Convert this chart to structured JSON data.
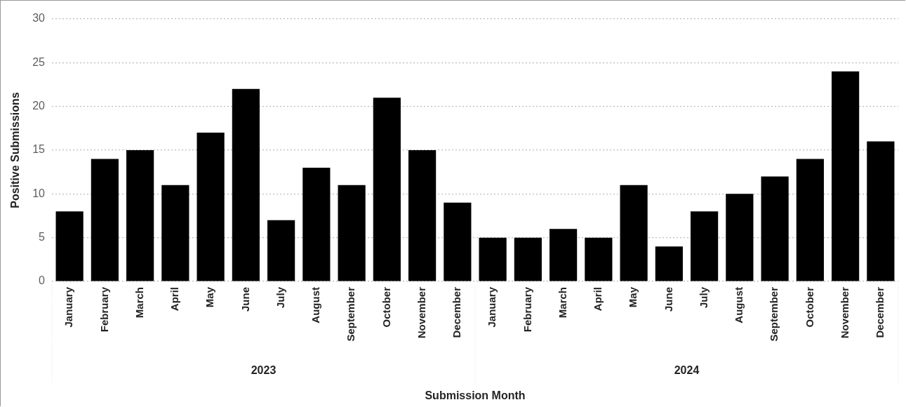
{
  "chart_data": {
    "type": "bar",
    "xlabel": "Submission Month",
    "ylabel": "Positive Submissions",
    "categories": [
      "January",
      "February",
      "March",
      "April",
      "May",
      "June",
      "July",
      "August",
      "September",
      "October",
      "November",
      "December",
      "January",
      "February",
      "March",
      "April",
      "May",
      "June",
      "July",
      "August",
      "September",
      "October",
      "November",
      "December"
    ],
    "values": [
      8,
      14,
      15,
      11,
      17,
      22,
      7,
      13,
      11,
      21,
      15,
      9,
      5,
      5,
      6,
      5,
      11,
      4,
      8,
      10,
      12,
      14,
      24,
      16
    ],
    "color": "#000000",
    "ylim": [
      0,
      30
    ],
    "yticks": [
      0,
      5,
      10,
      15,
      20,
      25,
      30
    ],
    "grid": "y",
    "legend": false,
    "annotations": [
      "2023",
      "2024"
    ]
  }
}
